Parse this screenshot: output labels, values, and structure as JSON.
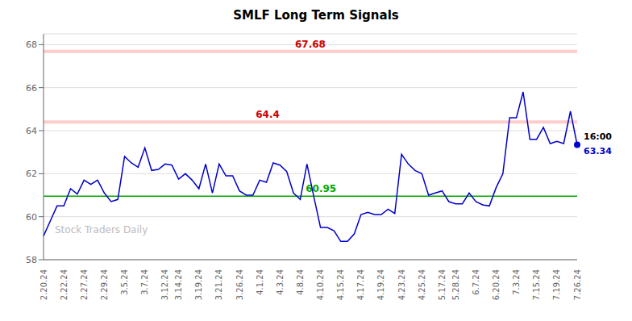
{
  "chart_data": {
    "type": "line",
    "title": "SMLF Long Term Signals",
    "categories": [
      "2.20.24",
      null,
      null,
      "2.22.24",
      null,
      null,
      "2.27.24",
      null,
      null,
      "2.29.24",
      null,
      null,
      "3.5.24",
      null,
      null,
      "3.7.24",
      null,
      null,
      "3.12.24",
      null,
      "3.14.24",
      null,
      null,
      "3.19.24",
      null,
      null,
      "3.21.24",
      null,
      null,
      "3.26.24",
      null,
      null,
      "4.1.24",
      null,
      null,
      "4.3.24",
      null,
      null,
      "4.8.24",
      null,
      null,
      "4.10.24",
      null,
      null,
      "4.15.24",
      null,
      null,
      "4.17.24",
      null,
      null,
      "4.19.24",
      null,
      null,
      "4.23.24",
      null,
      null,
      "4.25.24",
      null,
      null,
      "5.17.24",
      null,
      "5.28.24",
      null,
      null,
      "6.7.24",
      null,
      null,
      "6.20.24",
      null,
      null,
      "7.3.24",
      null,
      null,
      "7.15.24",
      null,
      null,
      "7.19.24",
      null,
      null,
      "7.26.24"
    ],
    "values": [
      59.1,
      59.8,
      60.5,
      60.5,
      61.3,
      61.05,
      61.7,
      61.5,
      61.7,
      61.1,
      60.7,
      60.8,
      62.8,
      62.5,
      62.3,
      63.2,
      62.15,
      62.2,
      62.45,
      62.4,
      61.75,
      62.0,
      61.7,
      61.3,
      62.45,
      61.1,
      62.45,
      61.9,
      61.9,
      61.2,
      61.0,
      61.0,
      61.7,
      61.6,
      62.5,
      62.4,
      62.1,
      61.1,
      60.8,
      62.45,
      60.95,
      59.5,
      59.5,
      59.35,
      58.85,
      58.85,
      59.2,
      60.1,
      60.2,
      60.1,
      60.1,
      60.35,
      60.15,
      62.9,
      62.45,
      62.15,
      62.0,
      61.0,
      61.1,
      61.2,
      60.7,
      60.6,
      60.6,
      61.1,
      60.7,
      60.55,
      60.5,
      61.35,
      62.0,
      64.6,
      64.6,
      65.8,
      63.6,
      63.6,
      64.15,
      63.4,
      63.5,
      63.4,
      64.9,
      63.34
    ],
    "color": "#0000cc",
    "hlines": [
      {
        "value": 67.68,
        "label": "67.68",
        "color": "#ffcccc",
        "label_color": "#cc0000"
      },
      {
        "value": 64.4,
        "label": "64.4",
        "color": "#ffcccc",
        "label_color": "#cc0000"
      },
      {
        "value": 60.95,
        "label": "60.95",
        "color": "#00aa00",
        "label_color": "#00aa00"
      }
    ],
    "end_point": {
      "value": 63.34,
      "label": "63.34",
      "time_label": "16:00"
    },
    "watermark": "Stock Traders Daily",
    "ylim": [
      58,
      68.5
    ],
    "yticks": [
      58,
      60,
      62,
      64,
      66,
      68
    ],
    "grid": true
  }
}
